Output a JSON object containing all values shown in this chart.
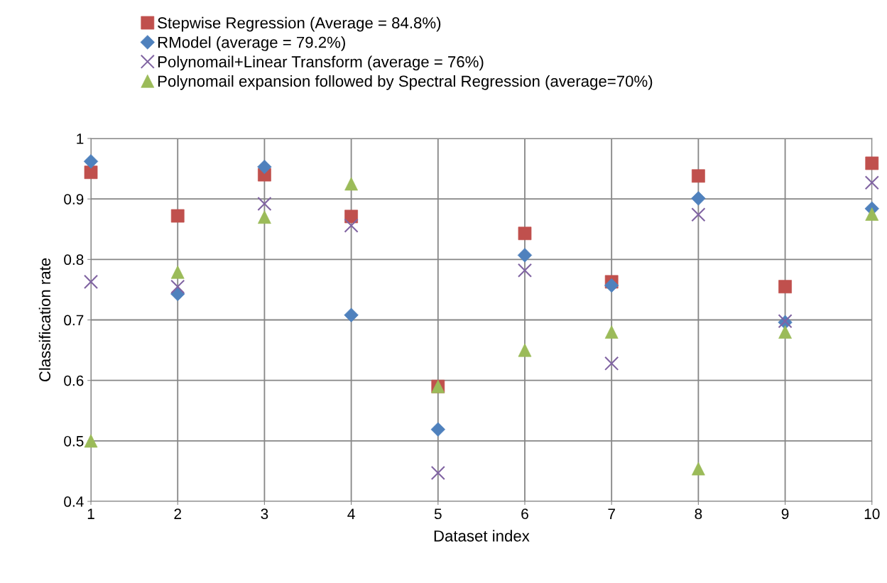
{
  "chart_data": {
    "type": "scatter",
    "xlabel": "Dataset index",
    "ylabel": "Classification rate",
    "x": [
      1,
      2,
      3,
      4,
      5,
      6,
      7,
      8,
      9,
      10
    ],
    "series": [
      {
        "name": "Stepwise Regression (Average = 84.8%)",
        "color": "#c0504d",
        "marker": "square",
        "values": [
          0.944,
          0.872,
          0.94,
          0.871,
          0.59,
          0.843,
          0.763,
          0.938,
          0.755,
          0.959
        ]
      },
      {
        "name": "RModel (average = 79.2%)",
        "color": "#4f81bd",
        "marker": "diamond",
        "values": [
          0.962,
          0.743,
          0.953,
          0.708,
          0.519,
          0.807,
          0.757,
          0.901,
          0.696,
          0.884
        ]
      },
      {
        "name": "Polynomail+Linear Transform (average = 76%)",
        "color": "#8064a2",
        "marker": "cross",
        "values": [
          0.763,
          0.755,
          0.892,
          0.856,
          0.447,
          0.782,
          0.628,
          0.874,
          0.698,
          0.927
        ]
      },
      {
        "name": "Polynomail expansion followed by Spectral Regression (average=70%)",
        "color": "#9bbb59",
        "marker": "triangle",
        "values": [
          0.5,
          0.779,
          0.87,
          0.925,
          0.59,
          0.65,
          0.68,
          0.454,
          0.68,
          0.875
        ]
      }
    ],
    "xlim": [
      1,
      10
    ],
    "xticks": [
      1,
      2,
      3,
      4,
      5,
      6,
      7,
      8,
      9,
      10
    ],
    "ylim": [
      0.4,
      1
    ],
    "yticks": [
      0.4,
      0.5,
      0.6,
      0.7,
      0.8,
      0.9,
      1
    ],
    "grid": true,
    "legend": "top"
  }
}
